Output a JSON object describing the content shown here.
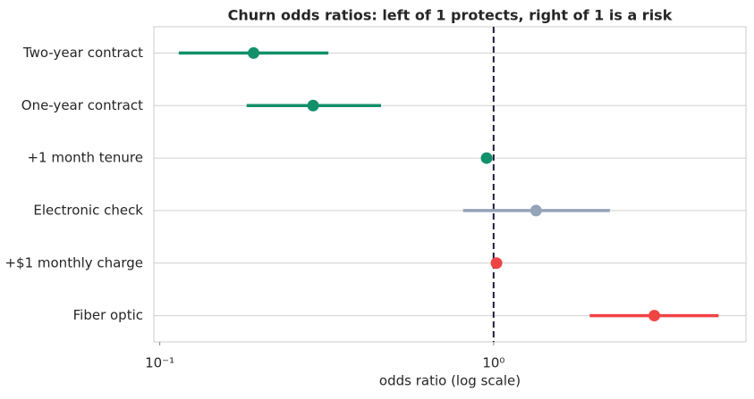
{
  "chart_data": {
    "type": "forest",
    "title": "Churn odds ratios: left of 1 protects, right of 1 is a risk",
    "x_label": "odds ratio (log scale)",
    "log_x": true,
    "grid": true,
    "categories": [
      "Two-year contract",
      "One-year contract",
      "+1 month tenure",
      "Electronic check",
      "+$1 monthly charge",
      "Fiber optic"
    ],
    "values": [
      0.191,
      0.288,
      0.953,
      1.34,
      1.02,
      3.03
    ],
    "lower": [
      0.114,
      0.182,
      null,
      0.81,
      null,
      1.94
    ],
    "upper": [
      0.32,
      0.46,
      null,
      2.23,
      null,
      4.72
    ],
    "colors": [
      "#12906a",
      "#12906a",
      "#12906a",
      "#94a3b8",
      "#ef4444",
      "#ef4444"
    ],
    "reference_line": 1,
    "reference_color": "#1e1e3f",
    "xlim": [
      0.096,
      5.7
    ],
    "xticks": [
      {
        "value": 0.1,
        "label": "10⁻¹"
      },
      {
        "value": 1,
        "label": "10⁰"
      }
    ]
  }
}
